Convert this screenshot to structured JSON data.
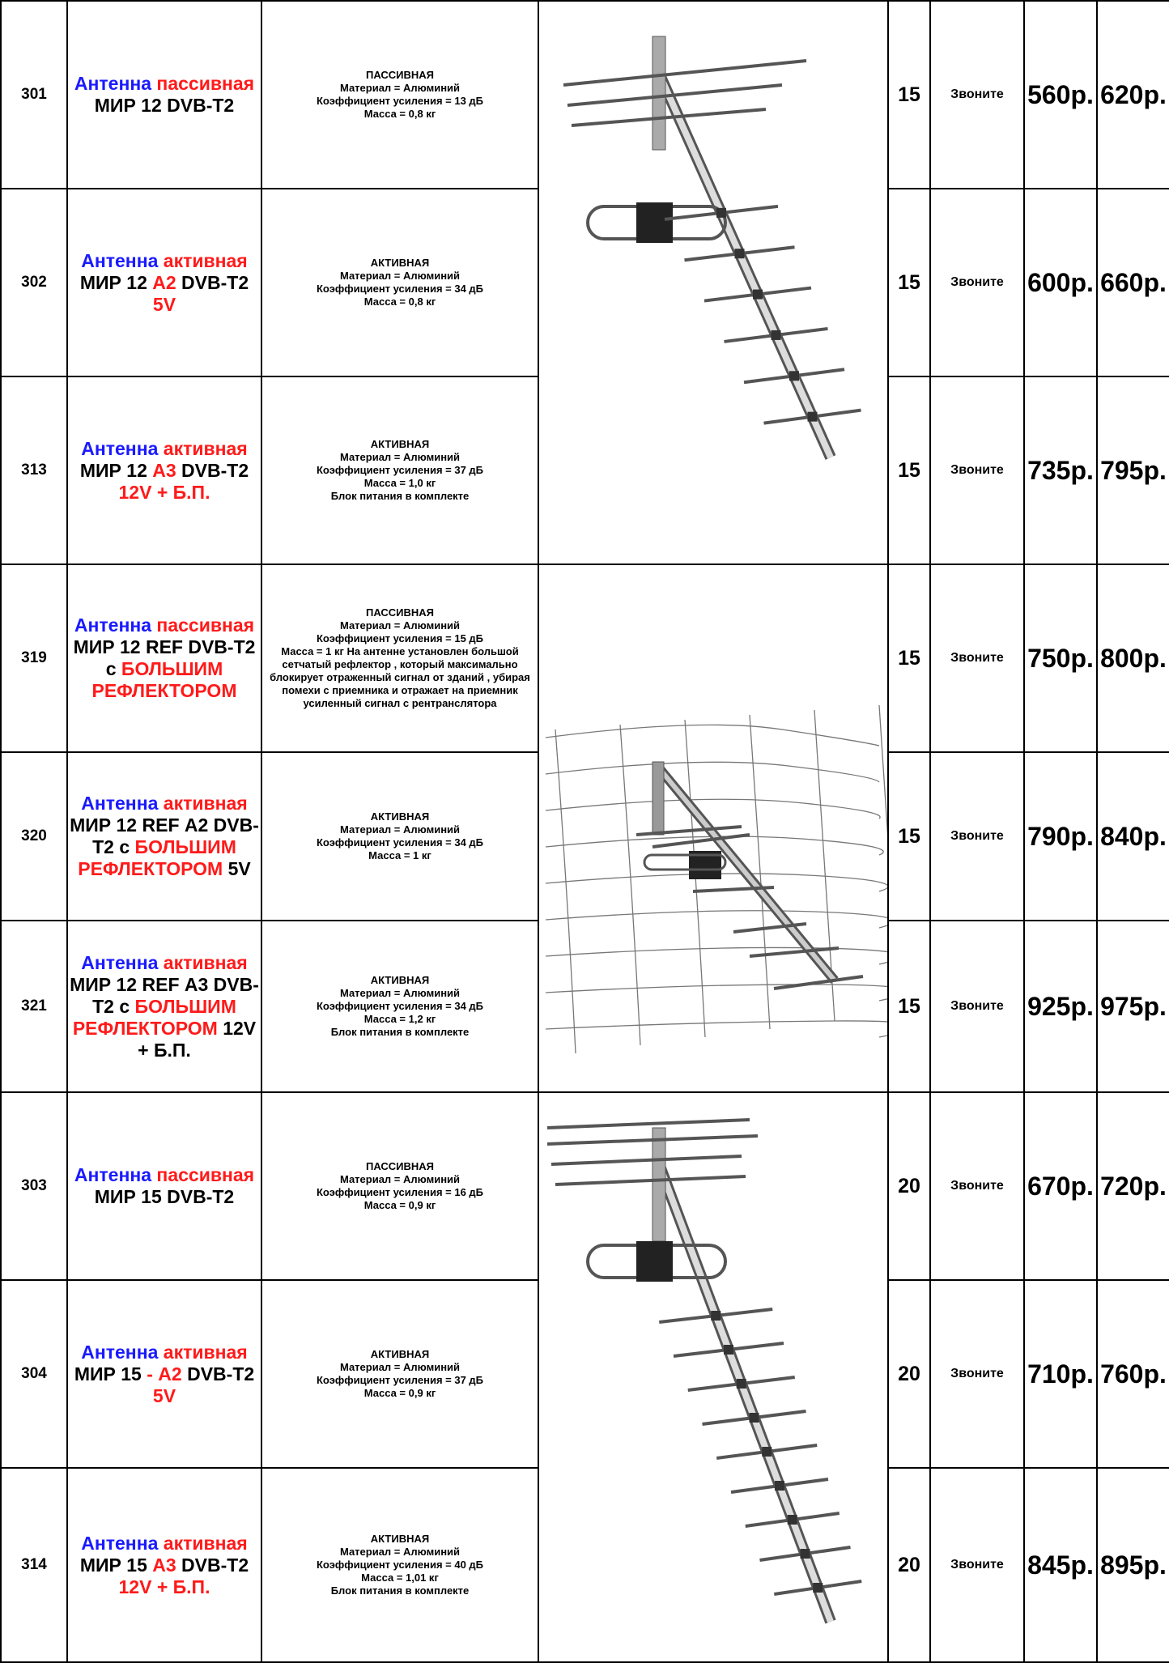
{
  "rows": [
    {
      "code": "301",
      "name": [
        {
          "t": "Антенна",
          "c": "blue"
        },
        {
          "t": " пассивная",
          "c": "red"
        },
        {
          "t": " МИР 12 DVB-T2",
          "c": "black"
        }
      ],
      "desc": [
        "ПАССИВНАЯ",
        "Материал = Алюминий",
        "Коэффициент усиления = 13 дБ",
        "Масса = 0,8 кг"
      ],
      "elements": "15",
      "call": "Звоните",
      "price_1": "560р.",
      "price_2": "620р."
    },
    {
      "code": "302",
      "name": [
        {
          "t": "Антенна",
          "c": "blue"
        },
        {
          "t": " активная",
          "c": "red"
        },
        {
          "t": " МИР 12 ",
          "c": "black"
        },
        {
          "t": "А2",
          "c": "red"
        },
        {
          "t": " DVB-T2 ",
          "c": "black"
        },
        {
          "t": "5V",
          "c": "red"
        }
      ],
      "desc": [
        "АКТИВНАЯ",
        "Материал = Алюминий",
        "Коэффициент усиления = 34 дБ",
        "Масса = 0,8 кг"
      ],
      "elements": "15",
      "call": "Звоните",
      "price_1": "600р.",
      "price_2": "660р."
    },
    {
      "code": "313",
      "name": [
        {
          "t": "Антенна",
          "c": "blue"
        },
        {
          "t": " активная",
          "c": "red"
        },
        {
          "t": " МИР 12 ",
          "c": "black"
        },
        {
          "t": "А3",
          "c": "red"
        },
        {
          "t": " DVB-T2 ",
          "c": "black"
        },
        {
          "t": "12V + Б.П.",
          "c": "red"
        }
      ],
      "desc": [
        "АКТИВНАЯ",
        "Материал = Алюминий",
        "Коэффициент усиления = 37 дБ",
        "Масса = 1,0 кг",
        "Блок питания в комплекте"
      ],
      "elements": "15",
      "call": "Звоните",
      "price_1": "735р.",
      "price_2": "795р."
    },
    {
      "code": "319",
      "name": [
        {
          "t": "Антенна",
          "c": "blue"
        },
        {
          "t": " пассивная",
          "c": "red"
        },
        {
          "t": " МИР 12 REF DVB-T2 с ",
          "c": "black"
        },
        {
          "t": "БОЛЬШИМ РЕФЛЕКТОРОМ",
          "c": "red"
        }
      ],
      "desc": [
        "ПАССИВНАЯ",
        "Материал = Алюминий",
        "Коэффициент усиления = 15 дБ",
        "Масса = 1 кг                    На антенне установлен большой сетчатый рефлектор , который максимально блокирует отраженный сигнал от зданий , убирая помехи с приемника и отражает на приемник усиленный сигнал с рентранслятора"
      ],
      "elements": "15",
      "call": "Звоните",
      "price_1": "750р.",
      "price_2": "800р."
    },
    {
      "code": "320",
      "name": [
        {
          "t": "Антенна",
          "c": "blue"
        },
        {
          "t": " активная",
          "c": "red"
        },
        {
          "t": " МИР 12 REF А2 DVB-T2 с ",
          "c": "black"
        },
        {
          "t": "БОЛЬШИМ РЕФЛЕКТОРОМ",
          "c": "red"
        },
        {
          "t": " 5V",
          "c": "black"
        }
      ],
      "desc": [
        "АКТИВНАЯ",
        "Материал = Алюминий",
        "Коэффициент усиления = 34 дБ",
        "Масса = 1 кг"
      ],
      "elements": "15",
      "call": "Звоните",
      "price_1": "790р.",
      "price_2": "840р."
    },
    {
      "code": "321",
      "name": [
        {
          "t": "Антенна",
          "c": "blue"
        },
        {
          "t": " активная",
          "c": "red"
        },
        {
          "t": " МИР 12 REF А3 DVB-T2 с ",
          "c": "black"
        },
        {
          "t": "БОЛЬШИМ РЕФЛЕКТОРОМ",
          "c": "red"
        },
        {
          "t": " 12V + Б.П.",
          "c": "black"
        }
      ],
      "desc": [
        "АКТИВНАЯ",
        "Материал = Алюминий",
        "Коэффициент усиления = 34 дБ",
        "Масса = 1,2 кг",
        "Блок питания в комплекте"
      ],
      "elements": "15",
      "call": "Звоните",
      "price_1": "925р.",
      "price_2": "975р."
    },
    {
      "code": "303",
      "name": [
        {
          "t": "Антенна",
          "c": "blue"
        },
        {
          "t": " пассивная",
          "c": "red"
        },
        {
          "t": " МИР 15 DVB-T2",
          "c": "black"
        }
      ],
      "desc": [
        "ПАССИВНАЯ",
        "Материал = Алюминий",
        "Коэффициент усиления = 16 дБ",
        "Масса = 0,9 кг"
      ],
      "elements": "20",
      "call": "Звоните",
      "price_1": "670р.",
      "price_2": "720р."
    },
    {
      "code": "304",
      "name": [
        {
          "t": "Антенна",
          "c": "blue"
        },
        {
          "t": " активная",
          "c": "red"
        },
        {
          "t": " МИР 15 ",
          "c": "black"
        },
        {
          "t": "- А2",
          "c": "red"
        },
        {
          "t": " DVB-T2 ",
          "c": "black"
        },
        {
          "t": "5V",
          "c": "red"
        }
      ],
      "desc": [
        "АКТИВНАЯ",
        "Материал = Алюминий",
        "Коэффициент усиления = 37 дБ",
        "Масса = 0,9 кг"
      ],
      "elements": "20",
      "call": "Звоните",
      "price_1": "710р.",
      "price_2": "760р."
    },
    {
      "code": "314",
      "name": [
        {
          "t": "Антенна",
          "c": "blue"
        },
        {
          "t": " активная",
          "c": "red"
        },
        {
          "t": " МИР 15 ",
          "c": "black"
        },
        {
          "t": "А3",
          "c": "red"
        },
        {
          "t": " DVB-T2 ",
          "c": "black"
        },
        {
          "t": "12V + Б.П.",
          "c": "red"
        }
      ],
      "desc": [
        "АКТИВНАЯ",
        "Материал = Алюминий",
        "Коэффициент усиления = 40 дБ",
        "Масса = 1,01 кг",
        "Блок питания в комплекте"
      ],
      "elements": "20",
      "call": "Звоните",
      "price_1": "845р.",
      "price_2": "895р."
    }
  ],
  "images": [
    {
      "icon": "yagi-antenna-12-illustration",
      "rows": [
        "301",
        "302",
        "313"
      ]
    },
    {
      "icon": "yagi-antenna-reflector-illustration",
      "rows": [
        "319",
        "320",
        "321"
      ]
    },
    {
      "icon": "yagi-antenna-15-illustration",
      "rows": [
        "303",
        "304",
        "314"
      ]
    }
  ],
  "colors": {
    "blue": "#1a1aff",
    "red": "#ff1a1a",
    "border": "#000000"
  }
}
